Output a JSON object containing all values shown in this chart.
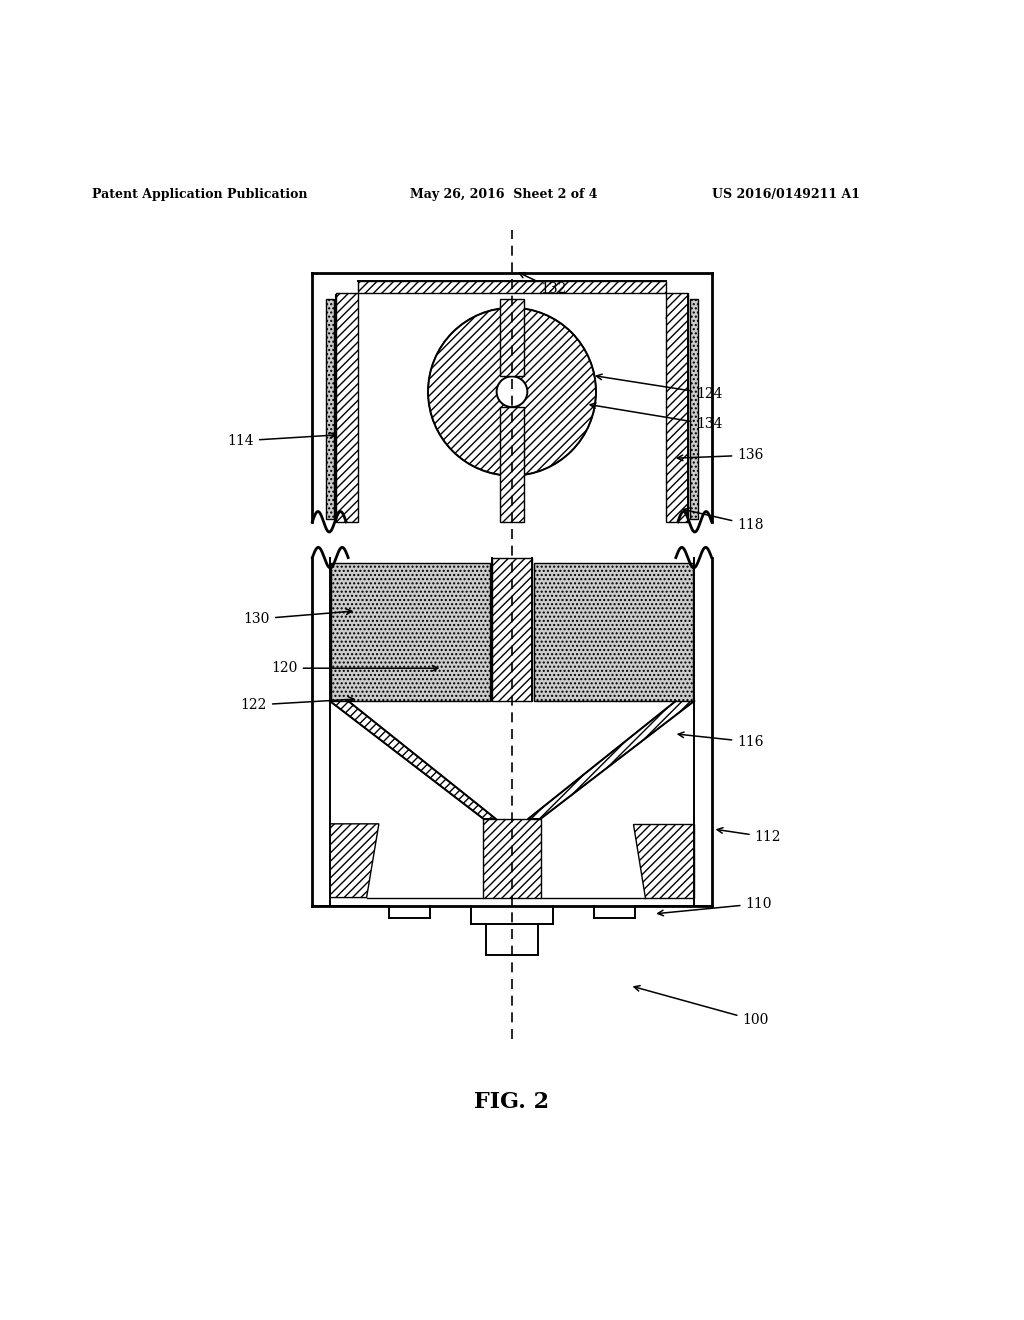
{
  "header_left": "Patent Application Publication",
  "header_mid": "May 26, 2016  Sheet 2 of 4",
  "header_right": "US 2016/0149211 A1",
  "fig_label": "FIG. 2",
  "bg_color": "#ffffff",
  "line_color": "#000000"
}
